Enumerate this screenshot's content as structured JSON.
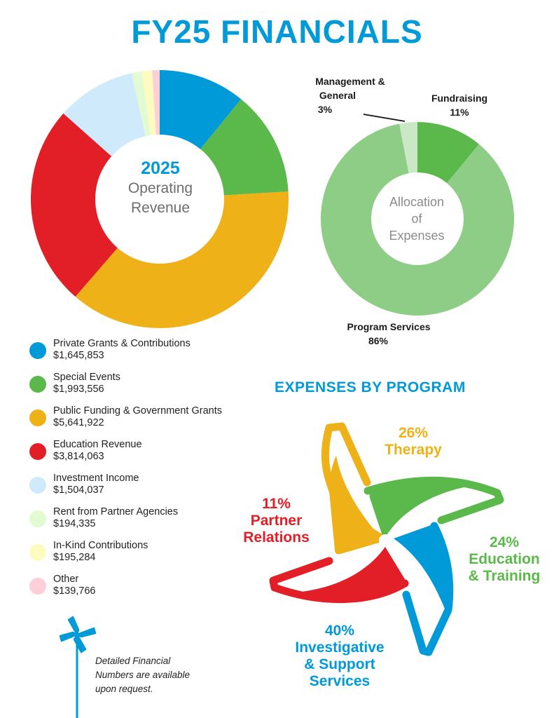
{
  "header": {
    "title": "FY25 FINANCIALS",
    "title_color": "#009ad9"
  },
  "revenue_donut": {
    "center_year": "2025",
    "center_line1": "Operating",
    "center_line2": "Revenue"
  },
  "legend": {
    "items": [
      {
        "label": "Private Grants & Contributions",
        "value": "$1,645,853",
        "color": "#009ad9"
      },
      {
        "label": "Special Events",
        "value": "$1,993,556",
        "color": "#5ab94a"
      },
      {
        "label": "Public Funding & Government Grants",
        "value": "$5,641,922",
        "color": "#efb118"
      },
      {
        "label": "Education Revenue",
        "value": "$3,814,063",
        "color": "#e21e26"
      },
      {
        "label": "Investment Income",
        "value": "$1,504,037",
        "color": "#cfeafb"
      },
      {
        "label": "Rent from Partner Agencies",
        "value": "$194,335",
        "color": "#e2fbd2"
      },
      {
        "label": "In-Kind Contributions",
        "value": "$195,284",
        "color": "#fefbc0"
      },
      {
        "label": "Other",
        "value": "$139,766",
        "color": "#fdd0d8"
      }
    ]
  },
  "expenses_donut": {
    "center_line1": "Allocation",
    "center_line2": "of",
    "center_line3": "Expenses",
    "labels": {
      "management_name1": "Management &",
      "management_name2": "General",
      "management_pct": "3%",
      "fundraising_name": "Fundraising",
      "fundraising_pct": "11%",
      "program_name": "Program Services",
      "program_pct": "86%"
    }
  },
  "program_section": {
    "title": "EXPENSES BY PROGRAM",
    "therapy_pct": "26%",
    "therapy_name": "Therapy",
    "education_pct": "24%",
    "education_name1": "Education",
    "education_name2": "& Training",
    "investigative_pct": "40%",
    "investigative_name1": "Investigative",
    "investigative_name2": "& Support",
    "investigative_name3": "Services",
    "partner_pct": "11%",
    "partner_name1": "Partner",
    "partner_name2": "Relations"
  },
  "footnote": {
    "line1": "Detailed Financial",
    "line2": "Numbers are available",
    "line3": "upon request."
  },
  "colors": {
    "blue": "#009ad9",
    "green": "#5ab94a",
    "yellow": "#efb118",
    "red": "#e21e26",
    "light_green": "#8ecd85",
    "pale_green": "#cbe8c6"
  },
  "chart_data": [
    {
      "type": "pie",
      "title": "2025 Operating Revenue",
      "categories": [
        "Private Grants & Contributions",
        "Special Events",
        "Public Funding & Government Grants",
        "Education Revenue",
        "Investment Income",
        "Rent from Partner Agencies",
        "In-Kind Contributions",
        "Other"
      ],
      "values": [
        1645853,
        1993556,
        5641922,
        3814063,
        1504037,
        194335,
        195284,
        139766
      ],
      "colors": [
        "#009ad9",
        "#5ab94a",
        "#efb118",
        "#e21e26",
        "#cfeafb",
        "#e2fbd2",
        "#fefbc0",
        "#fdd0d8"
      ],
      "donut": true,
      "legend_position": "bottom-left"
    },
    {
      "type": "pie",
      "title": "Allocation of Expenses",
      "categories": [
        "Fundraising",
        "Program Services",
        "Management & General"
      ],
      "values": [
        11,
        86,
        3
      ],
      "unit": "%",
      "colors": [
        "#5ab94a",
        "#8ecd85",
        "#cbe8c6"
      ],
      "donut": true
    },
    {
      "type": "pie",
      "title": "Expenses by Program",
      "categories": [
        "Therapy",
        "Education & Training",
        "Investigative & Support Services",
        "Partner Relations"
      ],
      "values": [
        26,
        24,
        40,
        11
      ],
      "unit": "%",
      "colors": [
        "#efb118",
        "#5ab94a",
        "#009ad9",
        "#e21e26"
      ],
      "style": "pinwheel"
    }
  ]
}
